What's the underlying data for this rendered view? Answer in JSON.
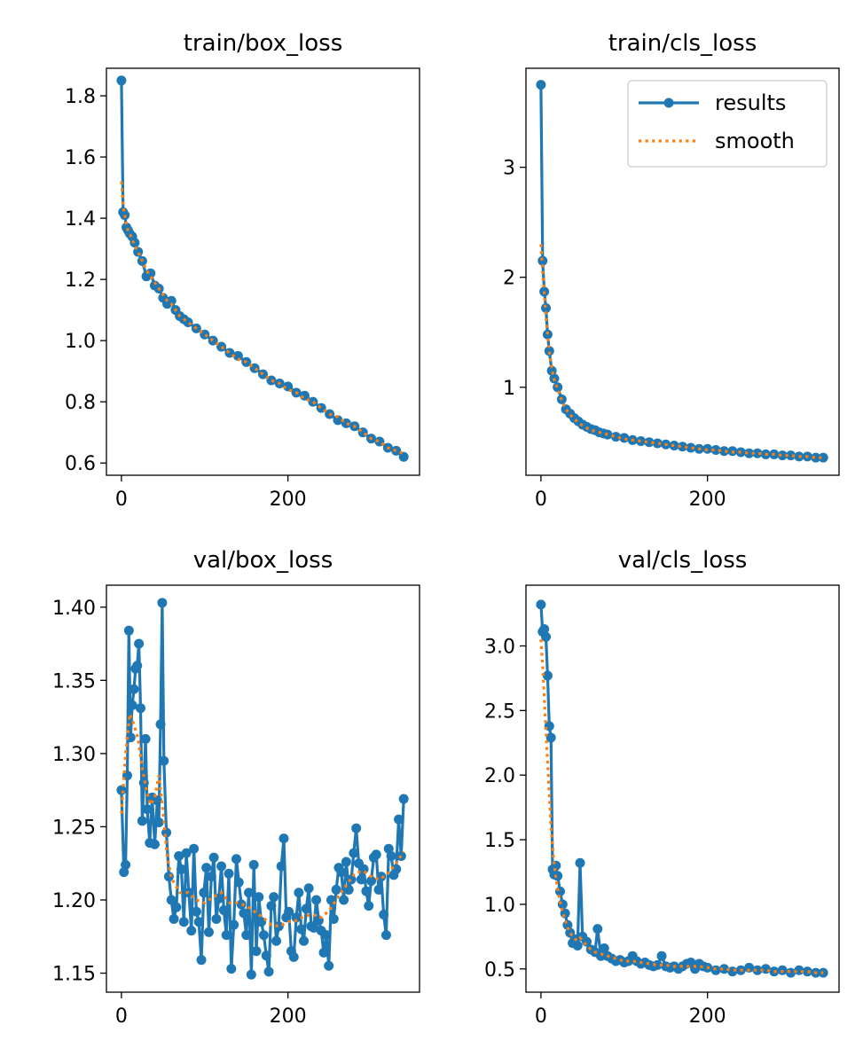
{
  "chart_data": [
    {
      "type": "line",
      "title": "train/box_loss",
      "x_ticks": [
        0,
        200
      ],
      "y_ticks": [
        0.6,
        0.8,
        1.0,
        1.2,
        1.4,
        1.6,
        1.8
      ],
      "x_tick_labels": [
        "0",
        "200"
      ],
      "y_tick_labels": [
        "0.6",
        "0.8",
        "1.0",
        "1.2",
        "1.4",
        "1.6",
        "1.8"
      ],
      "xlim": [
        -18,
        358
      ],
      "ylim": [
        0.56,
        1.89
      ],
      "grid": false,
      "series": [
        {
          "name": "results",
          "x": [
            0,
            2,
            4,
            6,
            8,
            10,
            13,
            16,
            20,
            25,
            30,
            35,
            40,
            45,
            50,
            55,
            60,
            65,
            70,
            75,
            80,
            90,
            100,
            110,
            120,
            130,
            140,
            150,
            160,
            170,
            180,
            190,
            200,
            210,
            220,
            230,
            240,
            250,
            260,
            270,
            280,
            290,
            300,
            310,
            320,
            330,
            339
          ],
          "y": [
            1.85,
            1.42,
            1.41,
            1.37,
            1.36,
            1.35,
            1.34,
            1.32,
            1.29,
            1.26,
            1.21,
            1.22,
            1.18,
            1.17,
            1.14,
            1.12,
            1.13,
            1.1,
            1.08,
            1.07,
            1.06,
            1.04,
            1.02,
            1.0,
            0.98,
            0.96,
            0.95,
            0.93,
            0.91,
            0.89,
            0.87,
            0.86,
            0.85,
            0.83,
            0.82,
            0.8,
            0.78,
            0.76,
            0.74,
            0.73,
            0.72,
            0.7,
            0.68,
            0.67,
            0.65,
            0.64,
            0.62
          ]
        },
        {
          "name": "smooth",
          "x": [
            0,
            2,
            4,
            6,
            8,
            10,
            13,
            16,
            20,
            25,
            30,
            35,
            40,
            45,
            50,
            55,
            60,
            65,
            70,
            75,
            80,
            90,
            100,
            110,
            120,
            130,
            140,
            150,
            160,
            170,
            180,
            190,
            200,
            210,
            220,
            230,
            240,
            250,
            260,
            270,
            280,
            290,
            300,
            310,
            320,
            330,
            339
          ],
          "y": [
            1.52,
            1.44,
            1.41,
            1.38,
            1.36,
            1.35,
            1.33,
            1.31,
            1.29,
            1.26,
            1.23,
            1.21,
            1.19,
            1.17,
            1.15,
            1.13,
            1.12,
            1.1,
            1.08,
            1.07,
            1.06,
            1.04,
            1.02,
            1.0,
            0.98,
            0.96,
            0.94,
            0.93,
            0.91,
            0.89,
            0.87,
            0.86,
            0.84,
            0.83,
            0.81,
            0.8,
            0.78,
            0.76,
            0.75,
            0.73,
            0.72,
            0.7,
            0.68,
            0.67,
            0.65,
            0.64,
            0.63
          ]
        }
      ],
      "legend": null
    },
    {
      "type": "line",
      "title": "train/cls_loss",
      "x_ticks": [
        0,
        200
      ],
      "y_ticks": [
        1,
        2,
        3
      ],
      "x_tick_labels": [
        "0",
        "200"
      ],
      "y_tick_labels": [
        "1",
        "2",
        "3"
      ],
      "xlim": [
        -18,
        358
      ],
      "ylim": [
        0.2,
        3.9
      ],
      "grid": false,
      "series": [
        {
          "name": "results",
          "x": [
            0,
            2,
            4,
            6,
            8,
            10,
            13,
            16,
            20,
            25,
            30,
            35,
            40,
            45,
            50,
            55,
            60,
            65,
            70,
            75,
            80,
            90,
            100,
            110,
            120,
            130,
            140,
            150,
            160,
            170,
            180,
            190,
            200,
            210,
            220,
            230,
            240,
            250,
            260,
            270,
            280,
            290,
            300,
            310,
            320,
            330,
            339
          ],
          "y": [
            3.75,
            2.15,
            1.87,
            1.72,
            1.48,
            1.33,
            1.15,
            1.08,
            1.0,
            0.89,
            0.8,
            0.76,
            0.72,
            0.69,
            0.66,
            0.64,
            0.62,
            0.61,
            0.59,
            0.58,
            0.57,
            0.55,
            0.54,
            0.52,
            0.51,
            0.5,
            0.49,
            0.48,
            0.47,
            0.46,
            0.45,
            0.44,
            0.44,
            0.43,
            0.42,
            0.42,
            0.41,
            0.4,
            0.4,
            0.39,
            0.39,
            0.38,
            0.38,
            0.37,
            0.37,
            0.36,
            0.36
          ]
        },
        {
          "name": "smooth",
          "x": [
            0,
            2,
            4,
            6,
            8,
            10,
            13,
            16,
            20,
            25,
            30,
            35,
            40,
            45,
            50,
            55,
            60,
            65,
            70,
            75,
            80,
            90,
            100,
            110,
            120,
            130,
            140,
            150,
            160,
            170,
            180,
            190,
            200,
            210,
            220,
            230,
            240,
            250,
            260,
            270,
            280,
            290,
            300,
            310,
            320,
            330,
            339
          ],
          "y": [
            2.3,
            2.05,
            1.85,
            1.65,
            1.48,
            1.33,
            1.17,
            1.07,
            0.98,
            0.88,
            0.8,
            0.75,
            0.71,
            0.68,
            0.65,
            0.63,
            0.61,
            0.6,
            0.59,
            0.58,
            0.57,
            0.55,
            0.53,
            0.52,
            0.51,
            0.5,
            0.49,
            0.48,
            0.47,
            0.46,
            0.45,
            0.44,
            0.43,
            0.43,
            0.42,
            0.41,
            0.41,
            0.4,
            0.4,
            0.39,
            0.39,
            0.38,
            0.38,
            0.37,
            0.37,
            0.36,
            0.36
          ]
        }
      ],
      "legend": {
        "placement": "upper right",
        "entries": [
          "results",
          "smooth"
        ]
      }
    },
    {
      "type": "line",
      "title": "val/box_loss",
      "x_ticks": [
        0,
        200
      ],
      "y_ticks": [
        1.15,
        1.2,
        1.25,
        1.3,
        1.35,
        1.4
      ],
      "x_tick_labels": [
        "0",
        "200"
      ],
      "y_tick_labels": [
        "1.15",
        "1.20",
        "1.25",
        "1.30",
        "1.35",
        "1.40"
      ],
      "xlim": [
        -18,
        358
      ],
      "ylim": [
        1.137,
        1.415
      ],
      "grid": false,
      "series": [
        {
          "name": "results",
          "x": [
            0,
            3,
            5,
            7,
            9,
            11,
            13,
            15,
            17,
            19,
            21,
            23,
            25,
            27,
            29,
            31,
            34,
            37,
            40,
            43,
            45,
            47,
            49,
            51,
            54,
            57,
            60,
            63,
            66,
            69,
            72,
            75,
            78,
            81,
            84,
            87,
            90,
            93,
            96,
            99,
            102,
            105,
            108,
            111,
            114,
            117,
            120,
            123,
            126,
            129,
            132,
            135,
            138,
            141,
            144,
            147,
            150,
            153,
            156,
            159,
            162,
            165,
            168,
            171,
            174,
            177,
            180,
            183,
            186,
            189,
            192,
            195,
            198,
            201,
            204,
            207,
            210,
            213,
            216,
            219,
            222,
            225,
            228,
            231,
            234,
            237,
            240,
            243,
            246,
            249,
            252,
            255,
            258,
            261,
            264,
            267,
            270,
            273,
            276,
            279,
            282,
            285,
            288,
            291,
            294,
            297,
            300,
            303,
            306,
            309,
            312,
            315,
            318,
            321,
            324,
            327,
            330,
            333,
            336,
            339
          ],
          "y": [
            1.275,
            1.219,
            1.224,
            1.285,
            1.384,
            1.311,
            1.333,
            1.344,
            1.358,
            1.36,
            1.375,
            1.331,
            1.254,
            1.28,
            1.31,
            1.262,
            1.239,
            1.27,
            1.238,
            1.268,
            1.253,
            1.32,
            1.403,
            1.295,
            1.246,
            1.216,
            1.2,
            1.187,
            1.195,
            1.23,
            1.221,
            1.185,
            1.232,
            1.205,
            1.179,
            1.235,
            1.192,
            1.185,
            1.159,
            1.205,
            1.222,
            1.178,
            1.216,
            1.229,
            1.187,
            1.201,
            1.223,
            1.193,
            1.176,
            1.218,
            1.153,
            1.183,
            1.228,
            1.212,
            1.197,
            1.191,
            1.176,
            1.205,
            1.149,
            1.224,
            1.165,
            1.202,
            1.185,
            1.176,
            1.162,
            1.151,
            1.196,
            1.202,
            1.172,
            1.182,
            1.223,
            1.242,
            1.188,
            1.192,
            1.165,
            1.161,
            1.188,
            1.205,
            1.18,
            1.172,
            1.194,
            1.208,
            1.182,
            1.181,
            1.2,
            1.186,
            1.179,
            1.164,
            1.176,
            1.155,
            1.2,
            1.187,
            1.207,
            1.222,
            1.219,
            1.2,
            1.226,
            1.207,
            1.214,
            1.232,
            1.249,
            1.225,
            1.214,
            1.221,
            1.206,
            1.196,
            1.213,
            1.229,
            1.231,
            1.207,
            1.216,
            1.19,
            1.176,
            1.235,
            1.23,
            1.217,
            1.221,
            1.255,
            1.23,
            1.269
          ]
        },
        {
          "name": "smooth",
          "x": [
            0,
            5,
            10,
            15,
            20,
            25,
            30,
            35,
            40,
            45,
            50,
            55,
            60,
            65,
            70,
            75,
            80,
            90,
            100,
            110,
            120,
            130,
            140,
            150,
            160,
            170,
            180,
            190,
            200,
            210,
            220,
            230,
            240,
            250,
            260,
            270,
            280,
            290,
            300,
            310,
            320,
            330,
            339
          ],
          "y": [
            1.259,
            1.3,
            1.327,
            1.32,
            1.31,
            1.29,
            1.275,
            1.265,
            1.27,
            1.285,
            1.26,
            1.23,
            1.215,
            1.21,
            1.205,
            1.205,
            1.205,
            1.2,
            1.198,
            1.202,
            1.205,
            1.198,
            1.198,
            1.196,
            1.192,
            1.188,
            1.183,
            1.182,
            1.185,
            1.186,
            1.189,
            1.19,
            1.188,
            1.193,
            1.202,
            1.21,
            1.218,
            1.22,
            1.216,
            1.214,
            1.218,
            1.225,
            1.233
          ]
        }
      ],
      "legend": null
    },
    {
      "type": "line",
      "title": "val/cls_loss",
      "x_ticks": [
        0,
        200
      ],
      "y_ticks": [
        0.5,
        1.0,
        1.5,
        2.0,
        2.5,
        3.0
      ],
      "x_tick_labels": [
        "0",
        "200"
      ],
      "y_tick_labels": [
        "0.5",
        "1.0",
        "1.5",
        "2.0",
        "2.5",
        "3.0"
      ],
      "xlim": [
        -18,
        358
      ],
      "ylim": [
        0.32,
        3.47
      ],
      "grid": false,
      "series": [
        {
          "name": "results",
          "x": [
            0,
            2,
            4,
            6,
            8,
            10,
            12,
            14,
            16,
            18,
            20,
            23,
            26,
            29,
            32,
            35,
            38,
            41,
            44,
            47,
            50,
            55,
            60,
            65,
            68,
            72,
            76,
            80,
            85,
            90,
            95,
            100,
            105,
            110,
            115,
            120,
            125,
            130,
            135,
            140,
            145,
            150,
            155,
            160,
            165,
            170,
            175,
            180,
            185,
            190,
            195,
            200,
            210,
            220,
            230,
            240,
            250,
            260,
            270,
            280,
            290,
            300,
            310,
            320,
            330,
            339
          ],
          "y": [
            3.32,
            3.11,
            3.13,
            3.07,
            2.77,
            2.38,
            2.29,
            1.27,
            1.23,
            1.3,
            1.22,
            1.1,
            1.0,
            0.93,
            0.84,
            0.78,
            0.7,
            0.73,
            0.68,
            1.32,
            0.75,
            0.71,
            0.65,
            0.63,
            0.81,
            0.6,
            0.66,
            0.6,
            0.58,
            0.56,
            0.57,
            0.55,
            0.56,
            0.6,
            0.56,
            0.54,
            0.55,
            0.53,
            0.52,
            0.53,
            0.6,
            0.52,
            0.51,
            0.52,
            0.5,
            0.52,
            0.54,
            0.55,
            0.5,
            0.54,
            0.52,
            0.51,
            0.49,
            0.5,
            0.48,
            0.49,
            0.51,
            0.49,
            0.5,
            0.48,
            0.49,
            0.47,
            0.49,
            0.48,
            0.47,
            0.47
          ]
        },
        {
          "name": "smooth",
          "x": [
            0,
            2,
            4,
            6,
            8,
            10,
            12,
            14,
            16,
            18,
            20,
            23,
            26,
            29,
            32,
            35,
            38,
            41,
            44,
            47,
            50,
            55,
            60,
            65,
            70,
            80,
            90,
            100,
            110,
            120,
            130,
            140,
            150,
            160,
            170,
            180,
            190,
            200,
            210,
            220,
            230,
            240,
            250,
            260,
            270,
            280,
            290,
            300,
            310,
            320,
            330,
            339
          ],
          "y": [
            3.05,
            2.85,
            2.6,
            2.35,
            2.1,
            1.85,
            1.6,
            1.45,
            1.3,
            1.2,
            1.12,
            1.02,
            0.94,
            0.88,
            0.82,
            0.78,
            0.75,
            0.73,
            0.72,
            0.74,
            0.72,
            0.68,
            0.65,
            0.63,
            0.62,
            0.6,
            0.58,
            0.56,
            0.56,
            0.55,
            0.54,
            0.53,
            0.53,
            0.52,
            0.52,
            0.52,
            0.52,
            0.51,
            0.5,
            0.5,
            0.49,
            0.49,
            0.49,
            0.49,
            0.49,
            0.48,
            0.48,
            0.48,
            0.48,
            0.48,
            0.47,
            0.47
          ]
        }
      ],
      "legend": null
    }
  ],
  "colors": {
    "results": "#1f77b4",
    "smooth": "#ff7f0e",
    "axis": "#000000",
    "background": "#ffffff",
    "legend_border": "#cccccc"
  }
}
